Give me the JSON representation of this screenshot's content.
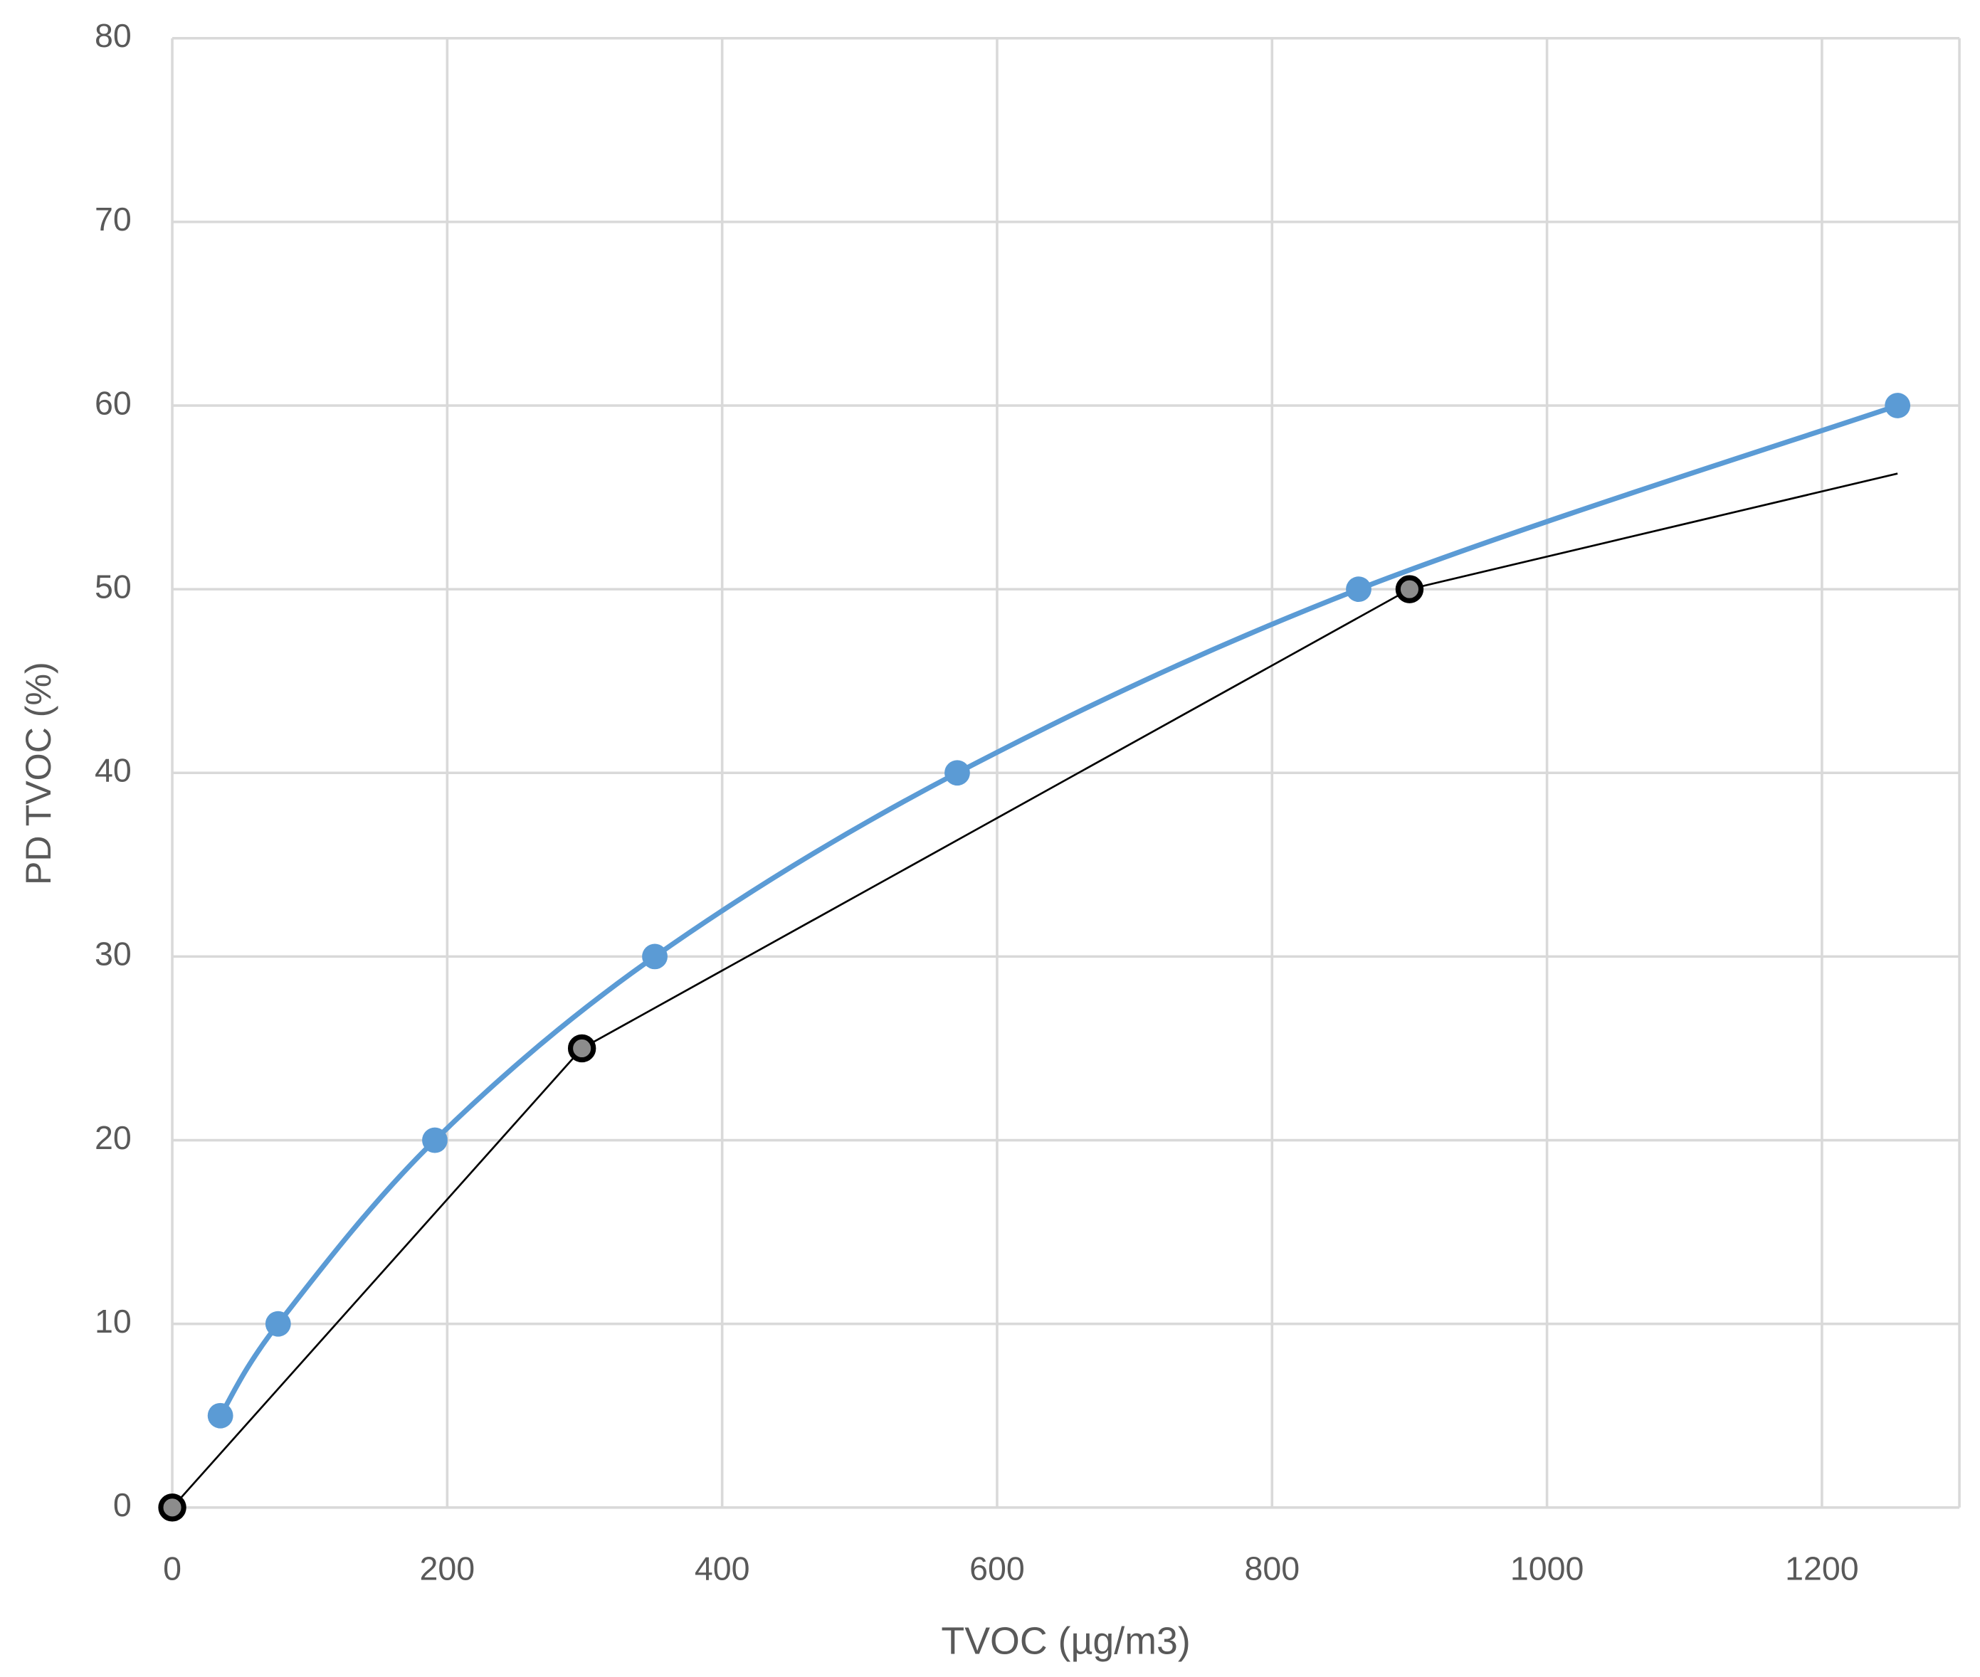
{
  "chart_data": {
    "type": "line",
    "x_label": "TVOC (µg/m3)",
    "y_label": "PD TVOC (%)",
    "xlim": [
      0,
      1300
    ],
    "xticks": [
      0,
      200,
      400,
      600,
      800,
      1000,
      1200
    ],
    "ylim": [
      0,
      80
    ],
    "yticks": [
      0,
      10,
      20,
      30,
      40,
      50,
      60,
      70,
      80
    ],
    "grid": true,
    "series": [
      {
        "color": "#5b9bd5",
        "smooth": true,
        "x": [
          35,
          77,
          191,
          351,
          571,
          863,
          1255
        ],
        "values": [
          5,
          10,
          20,
          30,
          40,
          50,
          60
        ],
        "markers": [
          true,
          true,
          true,
          true,
          true,
          true,
          true
        ]
      },
      {
        "color": "#000000",
        "smooth": false,
        "x": [
          0,
          298,
          900,
          1255
        ],
        "values": [
          0,
          25,
          50,
          56.3
        ],
        "markers": [
          true,
          true,
          true,
          false
        ]
      }
    ]
  }
}
